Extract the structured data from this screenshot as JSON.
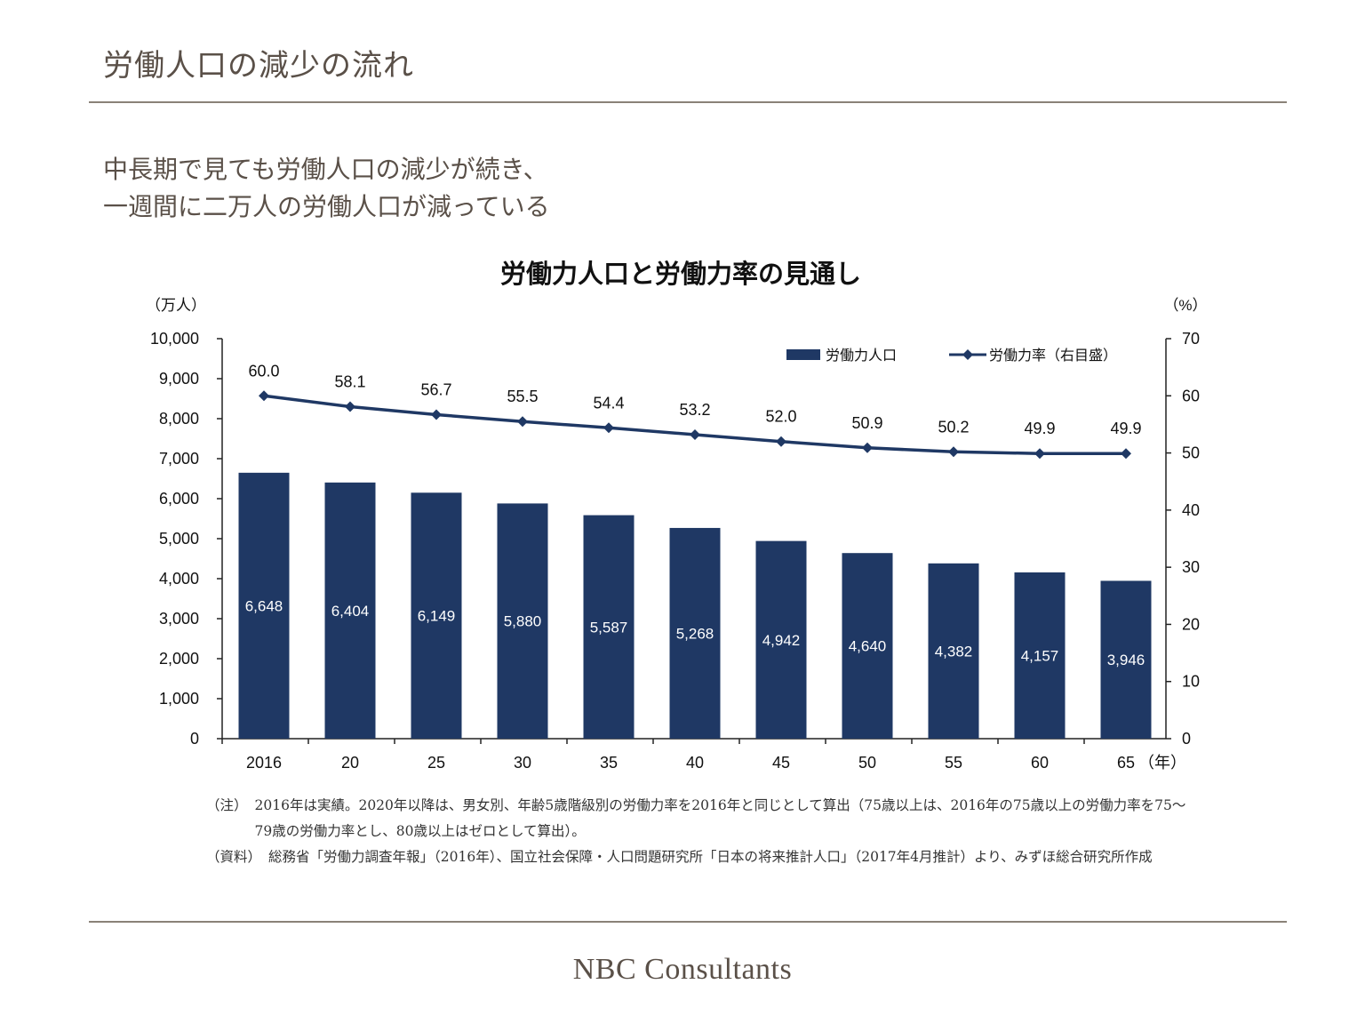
{
  "slide": {
    "title": "労働人口の減少の流れ",
    "subtitle_line1": "中長期で見ても労働人口の減少が続き、",
    "subtitle_line2": "一週間に二万人の労働人口が減っている",
    "footer": "NBC Consultants"
  },
  "notes": {
    "note_label": "（注）",
    "note_text": "2016年は実績。2020年以降は、男女別、年齢5歳階級別の労働力率を2016年と同じとして算出（75歳以上は、2016年の75歳以上の労働力率を75〜79歳の労働力率とし、80歳以上はゼロとして算出）。",
    "source_label": "（資料）",
    "source_text": "総務省「労働力調査年報」（2016年）、国立社会保障・人口問題研究所「日本の将来推計人口」（2017年4月推計）より、みずほ総合研究所作成"
  },
  "colors": {
    "bar": "#1f3864",
    "line": "#1f3864",
    "text": "#111111"
  },
  "chart_data": {
    "type": "bar",
    "title": "労働力人口と労働力率の見通し",
    "categories": [
      "2016",
      "20",
      "25",
      "30",
      "35",
      "40",
      "45",
      "50",
      "55",
      "60",
      "65"
    ],
    "x_unit": "（年）",
    "y_left_unit": "（万人）",
    "y_right_unit": "（%）",
    "y_left_lim": [
      0,
      10000
    ],
    "y_left_ticks": [
      "0",
      "1,000",
      "2,000",
      "3,000",
      "4,000",
      "5,000",
      "6,000",
      "7,000",
      "8,000",
      "9,000",
      "10,000"
    ],
    "y_right_lim": [
      0,
      70
    ],
    "y_right_ticks": [
      "0",
      "10",
      "20",
      "30",
      "40",
      "50",
      "60",
      "70"
    ],
    "series": [
      {
        "name": "労働力人口",
        "type": "bar",
        "axis": "left",
        "values": [
          6648,
          6404,
          6149,
          5880,
          5587,
          5268,
          4942,
          4640,
          4382,
          4157,
          3946
        ],
        "labels": [
          "6,648",
          "6,404",
          "6,149",
          "5,880",
          "5,587",
          "5,268",
          "4,942",
          "4,640",
          "4,382",
          "4,157",
          "3,946"
        ]
      },
      {
        "name": "労働力率（右目盛）",
        "type": "line",
        "axis": "right",
        "values": [
          60.0,
          58.1,
          56.7,
          55.5,
          54.4,
          53.2,
          52.0,
          50.9,
          50.2,
          49.9,
          49.9
        ],
        "labels": [
          "60.0",
          "58.1",
          "56.7",
          "55.5",
          "54.4",
          "53.2",
          "52.0",
          "50.9",
          "50.2",
          "49.9",
          "49.9"
        ]
      }
    ],
    "legend_position": "top-right",
    "grid": false
  }
}
